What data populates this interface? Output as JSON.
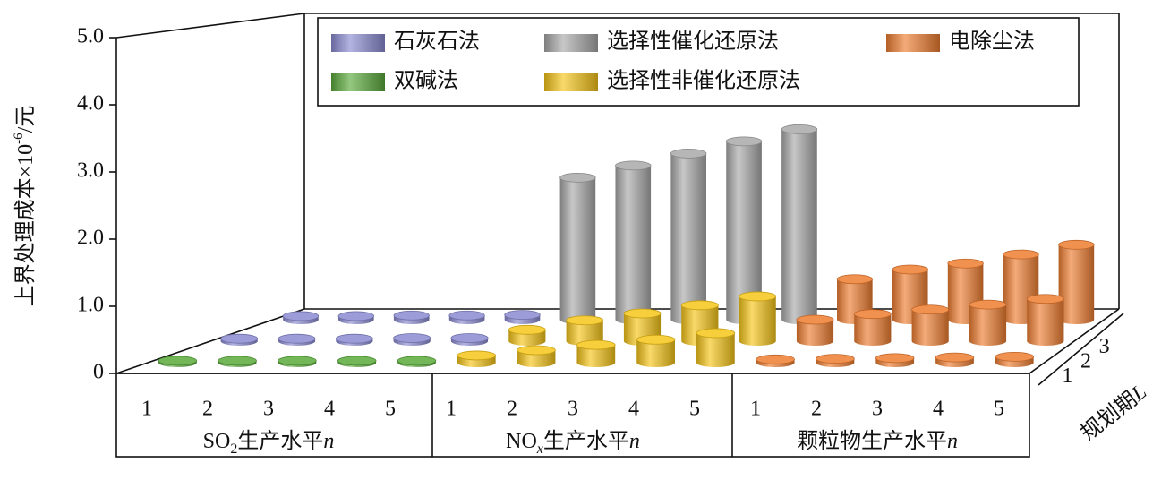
{
  "chart_data": {
    "type": "bar3d",
    "ylabel": [
      "上界处理成本×10",
      "-6",
      "/元"
    ],
    "ylim": [
      0,
      5
    ],
    "yticks": [
      0,
      {
        "value": 1,
        "label": "1.0"
      },
      {
        "value": 2,
        "label": "2.0"
      },
      {
        "value": 3,
        "label": "3.0"
      },
      {
        "value": 4,
        "label": "4.0"
      },
      {
        "value": 5,
        "label": "5.0"
      }
    ],
    "depth_label": [
      "规划期",
      "L"
    ],
    "depth_categories": [
      1,
      2,
      3
    ],
    "series": [
      {
        "name": "石灰石法",
        "color": "#8b8bd2"
      },
      {
        "name": "选择性催化还原法",
        "color": "#a9a9a9"
      },
      {
        "name": "电除尘法",
        "color": "#ee7d31"
      },
      {
        "name": "双碱法",
        "color": "#5aaa3c"
      },
      {
        "name": "选择性非催化还原法",
        "color": "#f5c518"
      }
    ],
    "groups": [
      {
        "label": [
          "SO",
          "2",
          "生产水平",
          "n"
        ],
        "categories": [
          1,
          2,
          3,
          4,
          5
        ],
        "rows": [
          {
            "method": "双碱法",
            "values": [
              0.03,
              0.03,
              0.03,
              0.03,
              0.03
            ]
          },
          {
            "method": "石灰石法",
            "values": [
              0.04,
              0.04,
              0.04,
              0.05,
              0.05
            ]
          },
          {
            "method": "石灰石法",
            "values": [
              0.06,
              0.06,
              0.07,
              0.07,
              0.08
            ]
          }
        ]
      },
      {
        "label": [
          "NO",
          "x",
          "生产水平",
          "n"
        ],
        "categories": [
          1,
          2,
          3,
          4,
          5
        ],
        "rows": [
          {
            "method": "选择性非催化还原法",
            "values": [
              0.11,
              0.19,
              0.27,
              0.35,
              0.45
            ]
          },
          {
            "method": "选择性非催化还原法",
            "values": [
              0.18,
              0.33,
              0.44,
              0.57,
              0.71
            ]
          },
          {
            "method": "选择性催化还原法",
            "values": [
              2.35,
              2.55,
              2.75,
              2.95,
              3.15
            ]
          }
        ]
      },
      {
        "label": [
          "颗粒物生产水平",
          "n"
        ],
        "categories": [
          1,
          2,
          3,
          4,
          5
        ],
        "rows": [
          {
            "method": "电除尘法",
            "values": [
              0.05,
              0.06,
              0.07,
              0.08,
              0.09
            ]
          },
          {
            "method": "电除尘法",
            "values": [
              0.34,
              0.43,
              0.5,
              0.58,
              0.67
            ]
          },
          {
            "method": "电除尘法",
            "values": [
              0.67,
              0.83,
              0.93,
              1.08,
              1.24
            ]
          }
        ]
      }
    ]
  }
}
